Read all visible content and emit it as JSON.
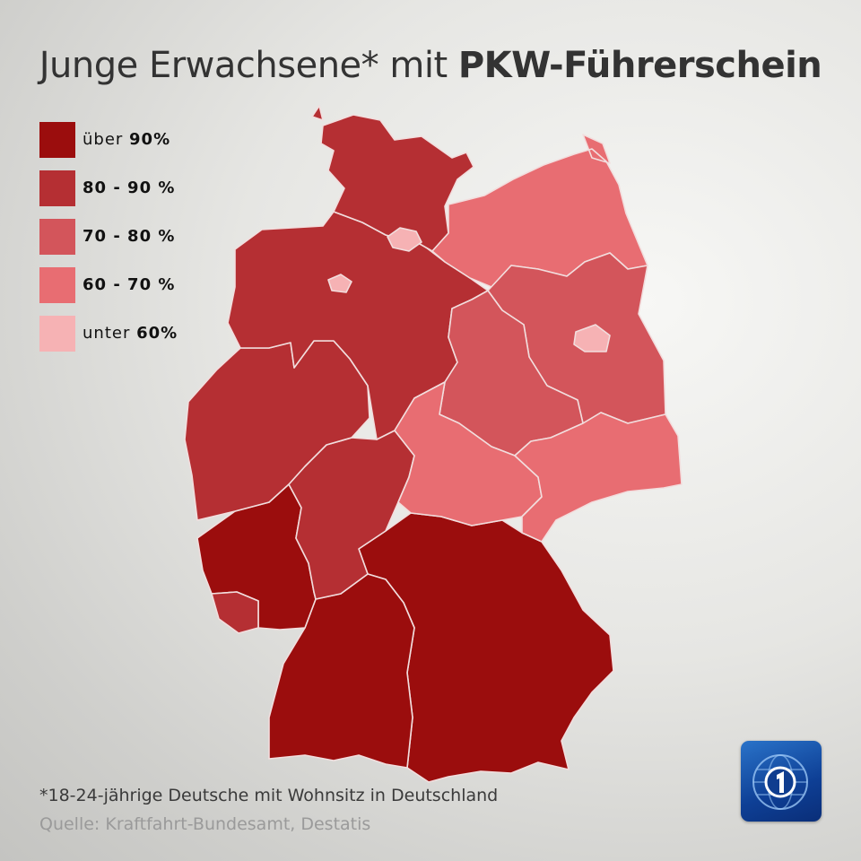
{
  "title": {
    "normal": "Junge Erwachsene* mit",
    "bold": "PKW-Führerschein"
  },
  "legend": [
    {
      "label": "über ",
      "value": "90%",
      "color": "#9b0d0d"
    },
    {
      "label": "80 - 90 %",
      "value": "",
      "color": "#b52f33"
    },
    {
      "label": "70 - 80 %",
      "value": "",
      "color": "#d3555b"
    },
    {
      "label": "60 - 70 %",
      "value": "",
      "color": "#e86d72"
    },
    {
      "label": "unter ",
      "value": "60%",
      "color": "#f6b2b4"
    }
  ],
  "regions": [
    {
      "name": "Schleswig-Holstein",
      "category": "80 - 90 %"
    },
    {
      "name": "Hamburg",
      "category": "unter 60%"
    },
    {
      "name": "Bremen",
      "category": "unter 60%"
    },
    {
      "name": "Niedersachsen",
      "category": "80 - 90 %"
    },
    {
      "name": "Mecklenburg-Vorpommern",
      "category": "60 - 70 %"
    },
    {
      "name": "Brandenburg",
      "category": "70 - 80 %"
    },
    {
      "name": "Berlin",
      "category": "unter 60%"
    },
    {
      "name": "Sachsen-Anhalt",
      "category": "70 - 80 %"
    },
    {
      "name": "Nordrhein-Westfalen",
      "category": "80 - 90 %"
    },
    {
      "name": "Hessen",
      "category": "80 - 90 %"
    },
    {
      "name": "Thüringen",
      "category": "60 - 70 %"
    },
    {
      "name": "Sachsen",
      "category": "60 - 70 %"
    },
    {
      "name": "Rheinland-Pfalz",
      "category": "über 90%"
    },
    {
      "name": "Saarland",
      "category": "80 - 90 %"
    },
    {
      "name": "Baden-Württemberg",
      "category": "über 90%"
    },
    {
      "name": "Bayern",
      "category": "über 90%"
    }
  ],
  "footnote": "*18-24-jährige Deutsche mit Wohnsitz in Deutschland",
  "source": "Quelle: Kraftfahrt-Bundesamt, Destatis",
  "logo": {
    "name": "das-erste-logo",
    "colors": {
      "bg": "#1a56b0",
      "globe": "#7fb3ee"
    }
  }
}
